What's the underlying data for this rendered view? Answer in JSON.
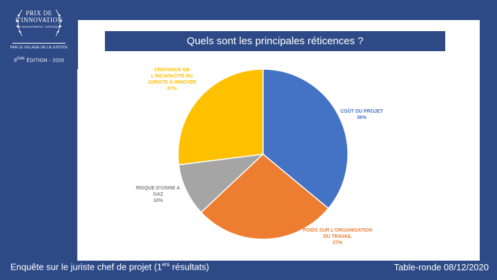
{
  "logo": {
    "line1": "PRIX DE",
    "line2": "L'INNOVATION",
    "line3": "EN MANAGEMENT JURIDIQUE",
    "line4": "PAR LE VILLAGE DE LA JUSTICE",
    "edition_num": "8",
    "edition_sup": "ÈME",
    "edition_rest": " ÉDITION - 2020"
  },
  "title": "Quels sont les principales réticences ?",
  "footer": {
    "left_main": "Enquête sur le juriste chef de projet (1",
    "left_sup": "ers",
    "left_end": " résultats)",
    "right": "Table-ronde 08/12/2020"
  },
  "chart_data": {
    "type": "pie",
    "slices": [
      {
        "label": "COÛT DU PROJET",
        "percent_label": "36%",
        "value": 36,
        "color": "#4472c4"
      },
      {
        "label": "POIDS SUR L'ORGANISATION DU TRAVAIL",
        "percent_label": "27%",
        "value": 27,
        "color": "#ed7d31"
      },
      {
        "label": "RISQUE D'USINE A GAZ",
        "percent_label": "10%",
        "value": 10,
        "color": "#a5a5a5"
      },
      {
        "label": "CROYANCE EN L'INCAPACITÉ DU JURISTE À INNOVER",
        "percent_label": "27%",
        "value": 27,
        "color": "#ffc000"
      }
    ]
  }
}
